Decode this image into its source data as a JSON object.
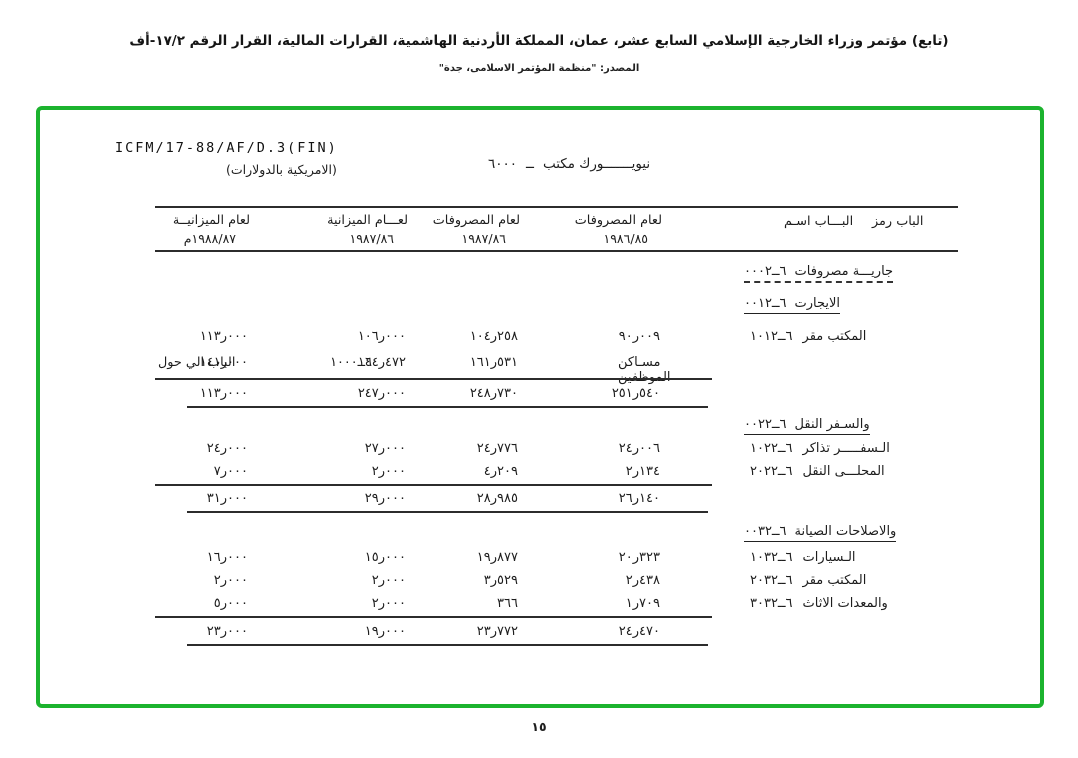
{
  "page": {
    "header_line": "(تابع) مؤتمر وزراء الخارجية الإسلامي السابع عشر، عمان، المملكة الأردنية الهاشمية، القرارات المالية، القرار الرقم ١٧/٢-أف",
    "source_line": "المصدر: \"منظمة المؤتمر الاسلامى، جدة\"",
    "page_number": "١٥"
  },
  "document": {
    "reference": "ICFM/17-88/AF/D.3(FIN)",
    "office_title": {
      "code": "٦٠٠٠",
      "dash": "ــ",
      "name": "مكتب نيويـــــــورك"
    },
    "currency_note": "(بالدولارات الامريكية)",
    "frame_color": "#1cb32e"
  },
  "table": {
    "columns": {
      "code_label": "رمز الباب",
      "name_label": "اسـم البـــاب",
      "money": [
        {
          "label": "المصروفات لعام",
          "year": "١٩٨٦/٨٥"
        },
        {
          "label": "المصروفات لعام",
          "year": "١٩٨٧/٨٦"
        },
        {
          "label": "الميزانية لعـــام",
          "year": "١٩٨٧/٨٦"
        },
        {
          "label": "الميزانيــة لعام",
          "year": "١٩٨٨/٨٧م"
        }
      ]
    },
    "sections": [
      {
        "code_visual": "٠٠٠٢ــ٦",
        "name": "مصروفات جاريـــة",
        "rows": [],
        "totals": null
      },
      {
        "code_visual": "٠٠١٢ــ٦",
        "name": "الايجارت",
        "rows": [
          {
            "code_visual": "١٠١٢ــ٦",
            "name": "مقر المكتب",
            "values": [
              "٩٠ر٠٠٩",
              "١٠٤ر٢٥٨",
              "١٠٦ر٠٠٠",
              "١١٣ر٠٠٠"
            ]
          },
          {
            "code_visual": "",
            "name": "مسـاكن الموظفين",
            "values": [
              "١٦١ر٥٣١",
              "١٤٤ر٤٧٢",
              "١٤١ر٠٠٠",
              ""
            ],
            "note": {
              "text": "حول الي الباب",
              "code_visual": "١٠٠٠ــ٦"
            }
          }
        ],
        "totals": [
          "٢٥١ر٥٤٠",
          "٢٤٨ر٧٣٠",
          "٢٤٧ر٠٠٠",
          "١١٣ر٠٠٠"
        ]
      },
      {
        "code_visual": "٠٠٢٢ــ٦",
        "name": "النقل والسـفر",
        "rows": [
          {
            "code_visual": "١٠٢٢ــ٦",
            "name": "تذاكر الـسفـــــر",
            "values": [
              "٢٤ر٠٠٦",
              "٢٤ر٧٧٦",
              "٢٧ر٠٠٠",
              "٢٤ر٠٠٠"
            ]
          },
          {
            "code_visual": "٢٠٢٢ــ٦",
            "name": "النقل المحلـــى",
            "values": [
              "٢ر١٣٤",
              "٤ر٢٠٩",
              "٢ر٠٠٠",
              "٧ر٠٠٠"
            ]
          }
        ],
        "totals": [
          "٢٦ر١٤٠",
          "٢٨ر٩٨٥",
          "٢٩ر٠٠٠",
          "٣١ر٠٠٠"
        ]
      },
      {
        "code_visual": "٠٠٣٢ــ٦",
        "name": "الصيانة والاصلاحات",
        "rows": [
          {
            "code_visual": "١٠٣٢ــ٦",
            "name": "الـسيارات",
            "values": [
              "٢٠ر٣٢٣",
              "١٩ر٨٧٧",
              "١٥ر٠٠٠",
              "١٦ر٠٠٠"
            ]
          },
          {
            "code_visual": "٢٠٣٢ــ٦",
            "name": "مقر المكتب",
            "values": [
              "٢ر٤٣٨",
              "٣ر٥٢٩",
              "٢ر٠٠٠",
              "٢ر٠٠٠"
            ]
          },
          {
            "code_visual": "٣٠٣٢ــ٦",
            "name": "الاثاث والمعدات",
            "values": [
              "١ر٧٠٩",
              "٣٦٦",
              "٢ر٠٠٠",
              "٥ر٠٠٠"
            ]
          }
        ],
        "totals": [
          "٢٤ر٤٧٠",
          "٢٣ر٧٧٢",
          "١٩ر٠٠٠",
          "٢٣ر٠٠٠"
        ]
      }
    ]
  }
}
